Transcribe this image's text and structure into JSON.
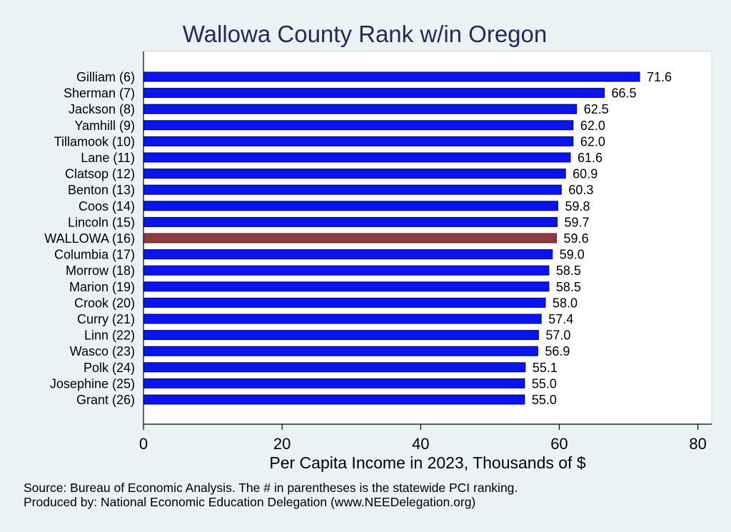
{
  "chart_data": {
    "type": "bar",
    "orientation": "horizontal",
    "title": "Wallowa County Rank w/in Oregon",
    "xlabel": "Per Capita Income in 2023, Thousands of $",
    "ylabel": "",
    "xlim": [
      0,
      82
    ],
    "xticks": [
      0,
      20,
      40,
      60,
      80
    ],
    "grid": false,
    "categories": [
      "Gilliam  (6)",
      "Sherman  (7)",
      "Jackson  (8)",
      "Yamhill  (9)",
      "Tillamook (10)",
      "Lane (11)",
      "Clatsop (12)",
      "Benton (13)",
      "Coos (14)",
      "Lincoln (15)",
      "WALLOWA (16)",
      "Columbia (17)",
      "Morrow (18)",
      "Marion (19)",
      "Crook (20)",
      "Curry (21)",
      "Linn (22)",
      "Wasco (23)",
      "Polk (24)",
      "Josephine (25)",
      "Grant (26)"
    ],
    "values": [
      71.6,
      66.5,
      62.5,
      62.0,
      62.0,
      61.6,
      60.9,
      60.3,
      59.8,
      59.7,
      59.6,
      59.0,
      58.5,
      58.5,
      58.0,
      57.4,
      57.0,
      56.9,
      55.1,
      55.0,
      55.0
    ],
    "value_labels": [
      "71.6",
      "66.5",
      "62.5",
      "62.0",
      "62.0",
      "61.6",
      "60.9",
      "60.3",
      "59.8",
      "59.7",
      "59.6",
      "59.0",
      "58.5",
      "58.5",
      "58.0",
      "57.4",
      "57.0",
      "56.9",
      "55.1",
      "55.0",
      "55.0"
    ],
    "highlight_index": 10,
    "colors": {
      "bar": "#0a14f0",
      "highlight": "#8f3a3c",
      "bar_edge": "#00007a",
      "plot_bg": "#ffffff",
      "page_bg": "#eaf2f3"
    }
  },
  "footnotes": {
    "source": "Source: Bureau of Economic Analysis. The # in parentheses is the statewide PCI ranking.",
    "produced_by": "Produced by: National Economic Education Delegation (www.NEEDelegation.org)"
  }
}
